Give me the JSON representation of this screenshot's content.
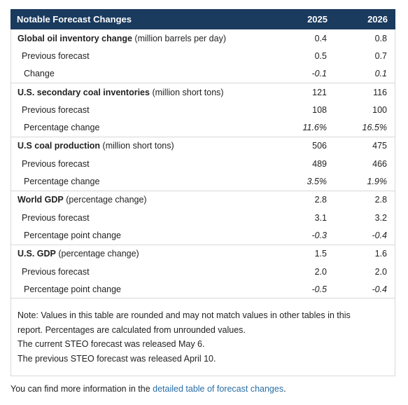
{
  "table": {
    "title": "Notable Forecast Changes",
    "years": [
      "2025",
      "2026"
    ],
    "groups": [
      {
        "name": "Global oil inventory change",
        "unit": "(million barrels per day)",
        "values": [
          "0.4",
          "0.8"
        ],
        "previous_label": "Previous forecast",
        "previous": [
          "0.5",
          "0.7"
        ],
        "change_label": "Change",
        "change": [
          "-0.1",
          "0.1"
        ]
      },
      {
        "name": "U.S. secondary coal inventories",
        "unit": "(million short tons)",
        "values": [
          "121",
          "116"
        ],
        "previous_label": "Previous forecast",
        "previous": [
          "108",
          "100"
        ],
        "change_label": "Percentage change",
        "change": [
          "11.6%",
          "16.5%"
        ]
      },
      {
        "name": "U.S coal production",
        "unit": "(million short tons)",
        "values": [
          "506",
          "475"
        ],
        "previous_label": "Previous forecast",
        "previous": [
          "489",
          "466"
        ],
        "change_label": "Percentage change",
        "change": [
          "3.5%",
          "1.9%"
        ]
      },
      {
        "name": "World GDP",
        "unit": "(percentage change)",
        "values": [
          "2.8",
          "2.8"
        ],
        "previous_label": "Previous forecast",
        "previous": [
          "3.1",
          "3.2"
        ],
        "change_label": "Percentage point change",
        "change": [
          "-0.3",
          "-0.4"
        ]
      },
      {
        "name": "U.S. GDP",
        "unit": "(percentage change)",
        "values": [
          "1.5",
          "1.6"
        ],
        "previous_label": "Previous forecast",
        "previous": [
          "2.0",
          "2.0"
        ],
        "change_label": "Percentage point change",
        "change": [
          "-0.5",
          "-0.4"
        ]
      }
    ],
    "note_lines": [
      "Note: Values in this table are rounded and may not match values in other tables in this",
      "report. Percentages are calculated from unrounded values.",
      "The current STEO forecast was released May 6.",
      "The previous STEO forecast was released April 10."
    ]
  },
  "footer": {
    "prefix": "You can find more information in the ",
    "link_text": "detailed table of forecast changes",
    "suffix": "."
  },
  "colors": {
    "header_bg": "#1a3a5e",
    "link": "#2a6ea6"
  }
}
